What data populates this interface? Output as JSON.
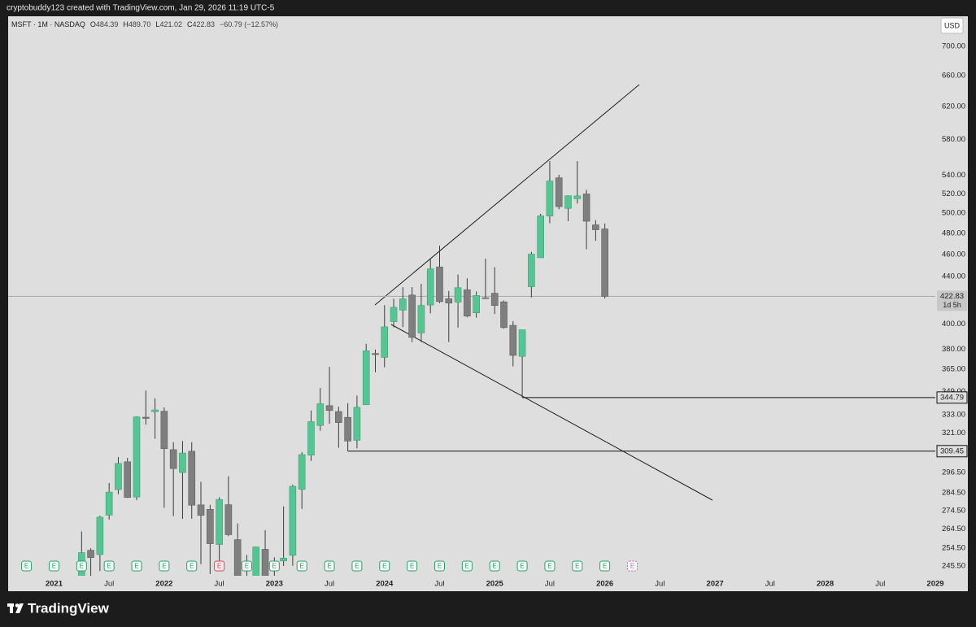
{
  "header": {
    "credit": "cryptobuddy123 created with TradingView.com, Jan 29, 2026 11:19 UTC-5"
  },
  "chart_data": {
    "type": "candlestick",
    "legend": {
      "symbol": "MSFT · 1M · NASDAQ",
      "fields": [
        {
          "key": "O",
          "value": "484.39"
        },
        {
          "key": "H",
          "value": "489.70"
        },
        {
          "key": "L",
          "value": "421.02"
        },
        {
          "key": "C",
          "value": "422.83"
        }
      ],
      "change": "−60.79 (−12.57%)"
    },
    "currency": "USD",
    "log_scale": true,
    "grid": false,
    "up_color": "#55c592",
    "down_color": "#7f7f7f",
    "wick_color": "#3c3c3c",
    "x": [
      "2021-04",
      "2021-05",
      "2021-06",
      "2021-07",
      "2021-08",
      "2021-09",
      "2021-10",
      "2021-11",
      "2021-12",
      "2022-01",
      "2022-02",
      "2022-03",
      "2022-04",
      "2022-05",
      "2022-06",
      "2022-07",
      "2022-08",
      "2022-09",
      "2022-10",
      "2022-11",
      "2022-12",
      "2023-01",
      "2023-02",
      "2023-03",
      "2023-04",
      "2023-05",
      "2023-06",
      "2023-07",
      "2023-08",
      "2023-09",
      "2023-10",
      "2023-11",
      "2023-12",
      "2024-01",
      "2024-02",
      "2024-03",
      "2024-04",
      "2024-05",
      "2024-06",
      "2024-07",
      "2024-08",
      "2024-09",
      "2024-10",
      "2024-11",
      "2024-12",
      "2025-01",
      "2025-02",
      "2025-03",
      "2025-04",
      "2025-05",
      "2025-06",
      "2025-07",
      "2025-08",
      "2025-09",
      "2025-10",
      "2025-11",
      "2025-12",
      "2026-01"
    ],
    "open": [
      238.5,
      253.4,
      251.2,
      272.0,
      286.4,
      302.9,
      282.1,
      331.4,
      335.1,
      335.4,
      310.4,
      296.4,
      309.4,
      277.7,
      275.2,
      256.4,
      277.8,
      258.9,
      235.4,
      234.6,
      253.9,
      243.1,
      248.0,
      250.8,
      286.5,
      306.97,
      325.9,
      339.2,
      335.2,
      331.3,
      316.3,
      339.8,
      376.8,
      373.9,
      401.8,
      411.3,
      423.95,
      392.7,
      415.5,
      448.7,
      420.8,
      417.9,
      428.45,
      409.0,
      421.6,
      425.5,
      418.2,
      398.8,
      374.65,
      431.1,
      457.1,
      497.2,
      537.0,
      504.9,
      514.8,
      519.8,
      488.4,
      484.39
    ],
    "high": [
      263.2,
      254.4,
      271.7,
      290.2,
      305.8,
      305.3,
      332.0,
      349.7,
      344.3,
      338.0,
      315.1,
      315.8,
      315.1,
      290.9,
      277.7,
      282.0,
      294.2,
      267.5,
      251.0,
      255.3,
      263.9,
      249.8,
      276.8,
      289.3,
      308.9,
      335.9,
      351.5,
      366.8,
      338.5,
      340.9,
      346.2,
      384.3,
      379.8,
      415.3,
      420.8,
      430.8,
      430.8,
      433.6,
      456.2,
      468.35,
      427.5,
      441.85,
      438.5,
      427.0,
      456.2,
      448.4,
      419.3,
      402.2,
      395.0,
      462.5,
      499.4,
      555.45,
      540.3,
      518.2,
      555.5,
      524.1,
      493.0,
      489.7
    ],
    "low": [
      238.1,
      238.1,
      243.0,
      269.6,
      283.7,
      281.6,
      280.3,
      326.4,
      317.3,
      276.1,
      271.5,
      270.0,
      270.0,
      246.4,
      241.5,
      245.9,
      260.7,
      232.7,
      219.1,
      213.4,
      233.9,
      219.4,
      245.5,
      245.6,
      275.4,
      303.4,
      322.5,
      327.0,
      311.6,
      309.45,
      311.2,
      339.7,
      362.9,
      366.5,
      397.2,
      397.4,
      385.6,
      385.6,
      408.5,
      417.2,
      385.6,
      397.0,
      405.3,
      405.0,
      420.7,
      408.1,
      396.2,
      367.2,
      344.79,
      421.9,
      456.9,
      490.0,
      504.0,
      492.0,
      510.0,
      464.9,
      473.0,
      421.02
    ],
    "close": [
      252.2,
      249.7,
      270.9,
      284.9,
      301.9,
      281.9,
      331.6,
      330.6,
      336.3,
      311.0,
      298.8,
      308.3,
      277.5,
      271.9,
      256.8,
      280.7,
      261.5,
      232.9,
      232.1,
      255.1,
      239.8,
      247.8,
      249.4,
      288.3,
      307.3,
      328.4,
      340.5,
      335.9,
      327.8,
      315.8,
      338.1,
      378.9,
      376.0,
      397.6,
      413.6,
      420.7,
      389.3,
      415.1,
      446.95,
      418.35,
      417.1,
      430.3,
      406.35,
      423.5,
      421.5,
      415.1,
      397.0,
      375.4,
      395.3,
      460.4,
      497.4,
      533.5,
      506.7,
      517.95,
      517.8,
      492.0,
      483.6,
      422.83
    ],
    "xlim": [
      "2020-08",
      "2029-01"
    ],
    "xticks": [
      {
        "value": "2021-01",
        "label": "2021"
      },
      {
        "value": "2021-07",
        "label": "Jul"
      },
      {
        "value": "2022-01",
        "label": "2022"
      },
      {
        "value": "2022-07",
        "label": "Jul"
      },
      {
        "value": "2023-01",
        "label": "2023"
      },
      {
        "value": "2023-07",
        "label": "Jul"
      },
      {
        "value": "2024-01",
        "label": "2024"
      },
      {
        "value": "2024-07",
        "label": "Jul"
      },
      {
        "value": "2025-01",
        "label": "2025"
      },
      {
        "value": "2025-07",
        "label": "Jul"
      },
      {
        "value": "2026-01",
        "label": "2026"
      },
      {
        "value": "2026-07",
        "label": "Jul"
      },
      {
        "value": "2027-01",
        "label": "2027"
      },
      {
        "value": "2027-07",
        "label": "Jul"
      },
      {
        "value": "2028-01",
        "label": "2028"
      },
      {
        "value": "2028-07",
        "label": "Jul"
      },
      {
        "value": "2029-01",
        "label": "2029"
      }
    ],
    "ylim": [
      240.7,
      743.8
    ],
    "yticks": [
      {
        "value": 700,
        "label": "700.00"
      },
      {
        "value": 660,
        "label": "660.00"
      },
      {
        "value": 620,
        "label": "620.00"
      },
      {
        "value": 580,
        "label": "580.00"
      },
      {
        "value": 540,
        "label": "540.00"
      },
      {
        "value": 520,
        "label": "520.00"
      },
      {
        "value": 500,
        "label": "500.00"
      },
      {
        "value": 480,
        "label": "480.00"
      },
      {
        "value": 460,
        "label": "460.00"
      },
      {
        "value": 440,
        "label": "440.00"
      },
      {
        "value": 400,
        "label": "400.00"
      },
      {
        "value": 380,
        "label": "380.00"
      },
      {
        "value": 365,
        "label": "365.00"
      },
      {
        "value": 349,
        "label": "349.00"
      },
      {
        "value": 333,
        "label": "333.00"
      },
      {
        "value": 321,
        "label": "321.00"
      },
      {
        "value": 296.5,
        "label": "296.50"
      },
      {
        "value": 284.5,
        "label": "284.50"
      },
      {
        "value": 274.5,
        "label": "274.50"
      },
      {
        "value": 264.5,
        "label": "264.50"
      },
      {
        "value": 254.5,
        "label": "254.50"
      },
      {
        "value": 245.5,
        "label": "245.50"
      }
    ],
    "last_price": {
      "value": 422.83,
      "countdown": "1d 5h"
    },
    "levels": [
      {
        "value": 344.79,
        "from": "2025-04"
      },
      {
        "value": 309.45,
        "from": "2023-09"
      }
    ],
    "earnings": {
      "label": "E",
      "months": [
        "2020-10",
        "2021-01",
        "2021-04",
        "2021-07",
        "2021-10",
        "2022-01",
        "2022-04",
        "2022-07",
        "2022-10",
        "2023-01",
        "2023-04",
        "2023-07",
        "2023-10",
        "2024-01",
        "2024-04",
        "2024-07",
        "2024-10",
        "2025-01",
        "2025-04",
        "2025-07",
        "2025-10",
        "2026-01",
        "2026-04"
      ],
      "missed": [
        "2022-07"
      ],
      "upcoming": [
        "2026-04"
      ],
      "color": "#2e9e6c",
      "missed_color": "#e0455b",
      "upcoming_color": "#d05fd6"
    }
  },
  "footer": {
    "brand": "TradingView"
  }
}
